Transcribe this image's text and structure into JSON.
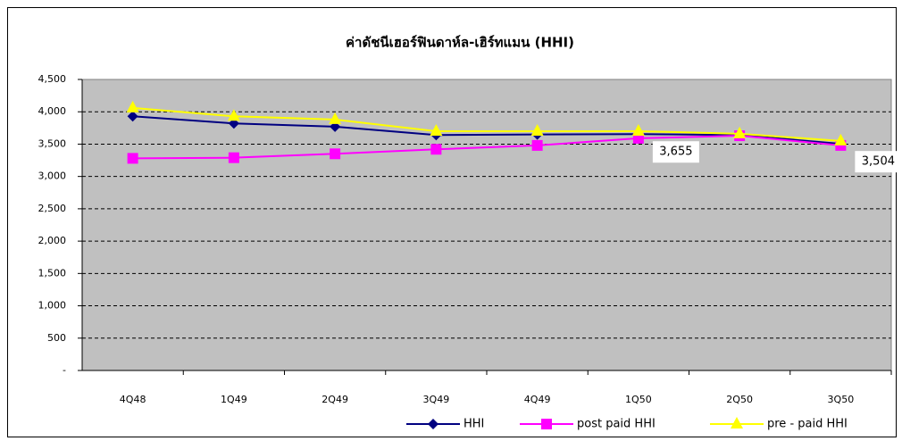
{
  "chart_data": {
    "type": "line",
    "title": "ค่าดัชนีเฮอร์ฟินดาห์ล-เฮิร์ทแมน (HHI)",
    "categories": [
      "4Q48",
      "1Q49",
      "2Q49",
      "3Q49",
      "4Q49",
      "1Q50",
      "2Q50",
      "3Q50"
    ],
    "series": [
      {
        "name": "HHI",
        "color": "#000080",
        "marker": "diamond",
        "values": [
          3930,
          3820,
          3770,
          3640,
          3650,
          3655,
          3640,
          3504
        ],
        "value_labels": [
          null,
          null,
          null,
          null,
          null,
          "3,655",
          null,
          "3,504"
        ]
      },
      {
        "name": "post paid HHI",
        "color": "#ff00ff",
        "marker": "square",
        "values": [
          3280,
          3290,
          3350,
          3420,
          3480,
          3590,
          3630,
          3480
        ]
      },
      {
        "name": "pre - paid HHI",
        "color": "#ffff00",
        "marker": "triangle",
        "values": [
          4060,
          3930,
          3880,
          3700,
          3700,
          3700,
          3660,
          3550
        ]
      }
    ],
    "ylim": [
      0,
      4500
    ],
    "yticks": [
      {
        "value": 0,
        "label": "-"
      },
      500,
      {
        "value": 1000,
        "label": "1,000"
      },
      {
        "value": 1500,
        "label": "1,500"
      },
      {
        "value": 2000,
        "label": "2,000"
      },
      {
        "value": 2500,
        "label": "2,500"
      },
      {
        "value": 3000,
        "label": "3,000"
      },
      {
        "value": 3500,
        "label": "3,500"
      },
      {
        "value": 4000,
        "label": "4,000"
      },
      {
        "value": 4500,
        "label": "4,500"
      }
    ],
    "grid": true,
    "legend": "bottom"
  }
}
